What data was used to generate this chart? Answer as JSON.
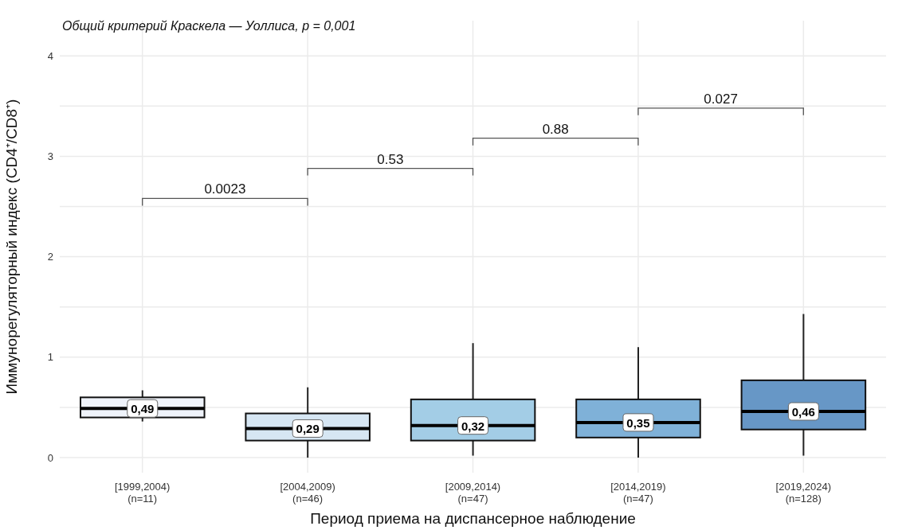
{
  "chart_data": {
    "type": "box",
    "title": "Общий критерий Краскела — Уоллиса, p = 0,001",
    "xlabel": "Период приема на диспансерное наблюдение",
    "ylabel": "Иммунорегуляторный индекс (CD4⁺/CD8⁺)",
    "categories": [
      "[1999,2004)\n(n=11)",
      "[2004,2009)\n(n=46)",
      "[2009,2014)\n(n=47)",
      "[2014,2019)\n(n=47)",
      "[2019,2024)\n(n=128)"
    ],
    "boxes": [
      {
        "low": 0.36,
        "q1": 0.4,
        "median": 0.49,
        "q3": 0.6,
        "high": 0.67
      },
      {
        "low": 0,
        "q1": 0.17,
        "median": 0.29,
        "q3": 0.44,
        "high": 0.7
      },
      {
        "low": 0.02,
        "q1": 0.17,
        "median": 0.32,
        "q3": 0.58,
        "high": 1.14
      },
      {
        "low": 0,
        "q1": 0.2,
        "median": 0.35,
        "q3": 0.58,
        "high": 1.1
      },
      {
        "low": 0.02,
        "q1": 0.28,
        "median": 0.46,
        "q3": 0.77,
        "high": 1.43
      }
    ],
    "colors": [
      "#eff3fa",
      "#d6e6f3",
      "#a3cde6",
      "#7fb1d8",
      "#6797c6"
    ],
    "value_labels": [
      "0,49",
      "0,29",
      "0,32",
      "0,35",
      "0,46"
    ],
    "annotations": [
      "0.0023",
      "0.53",
      "0.88",
      "0.027"
    ],
    "ylim": [
      -0.15,
      4.35
    ],
    "yticks": [
      0,
      {
        "value": 0.5,
        "label": null
      },
      1,
      {
        "value": 1.5,
        "label": null
      },
      2,
      {
        "value": 2.5,
        "label": null
      },
      3,
      {
        "value": 3.5,
        "label": null
      },
      4
    ],
    "grid": true
  }
}
